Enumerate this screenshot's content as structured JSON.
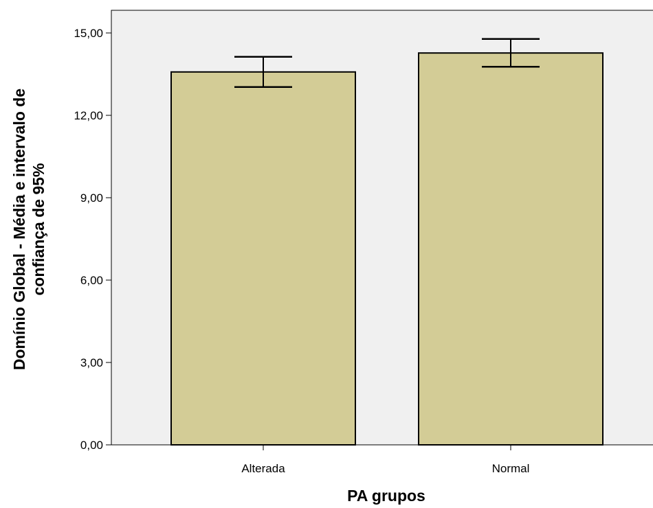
{
  "chart_data": {
    "type": "bar",
    "title": "",
    "xlabel": "PA grupos",
    "ylabel_lines": [
      "Domínio Global - Média e intervalo de",
      "confiança de 95%"
    ],
    "categories": [
      "Alterada",
      "Normal"
    ],
    "values": [
      13.58,
      14.27
    ],
    "error_low": [
      13.03,
      13.77
    ],
    "error_high": [
      14.13,
      14.78
    ],
    "ylim": [
      0,
      15.8
    ],
    "yticks": [
      0,
      3,
      6,
      9,
      12,
      15
    ],
    "ytick_labels": [
      "0,00",
      "3,00",
      "6,00",
      "9,00",
      "12,00",
      "15,00"
    ],
    "grid": false,
    "legend": "none",
    "colors": {
      "bar_fill": "#d3cc96",
      "bar_stroke": "#000000",
      "plot_background": "#f0f0f0",
      "error_bar": "#000000"
    }
  }
}
